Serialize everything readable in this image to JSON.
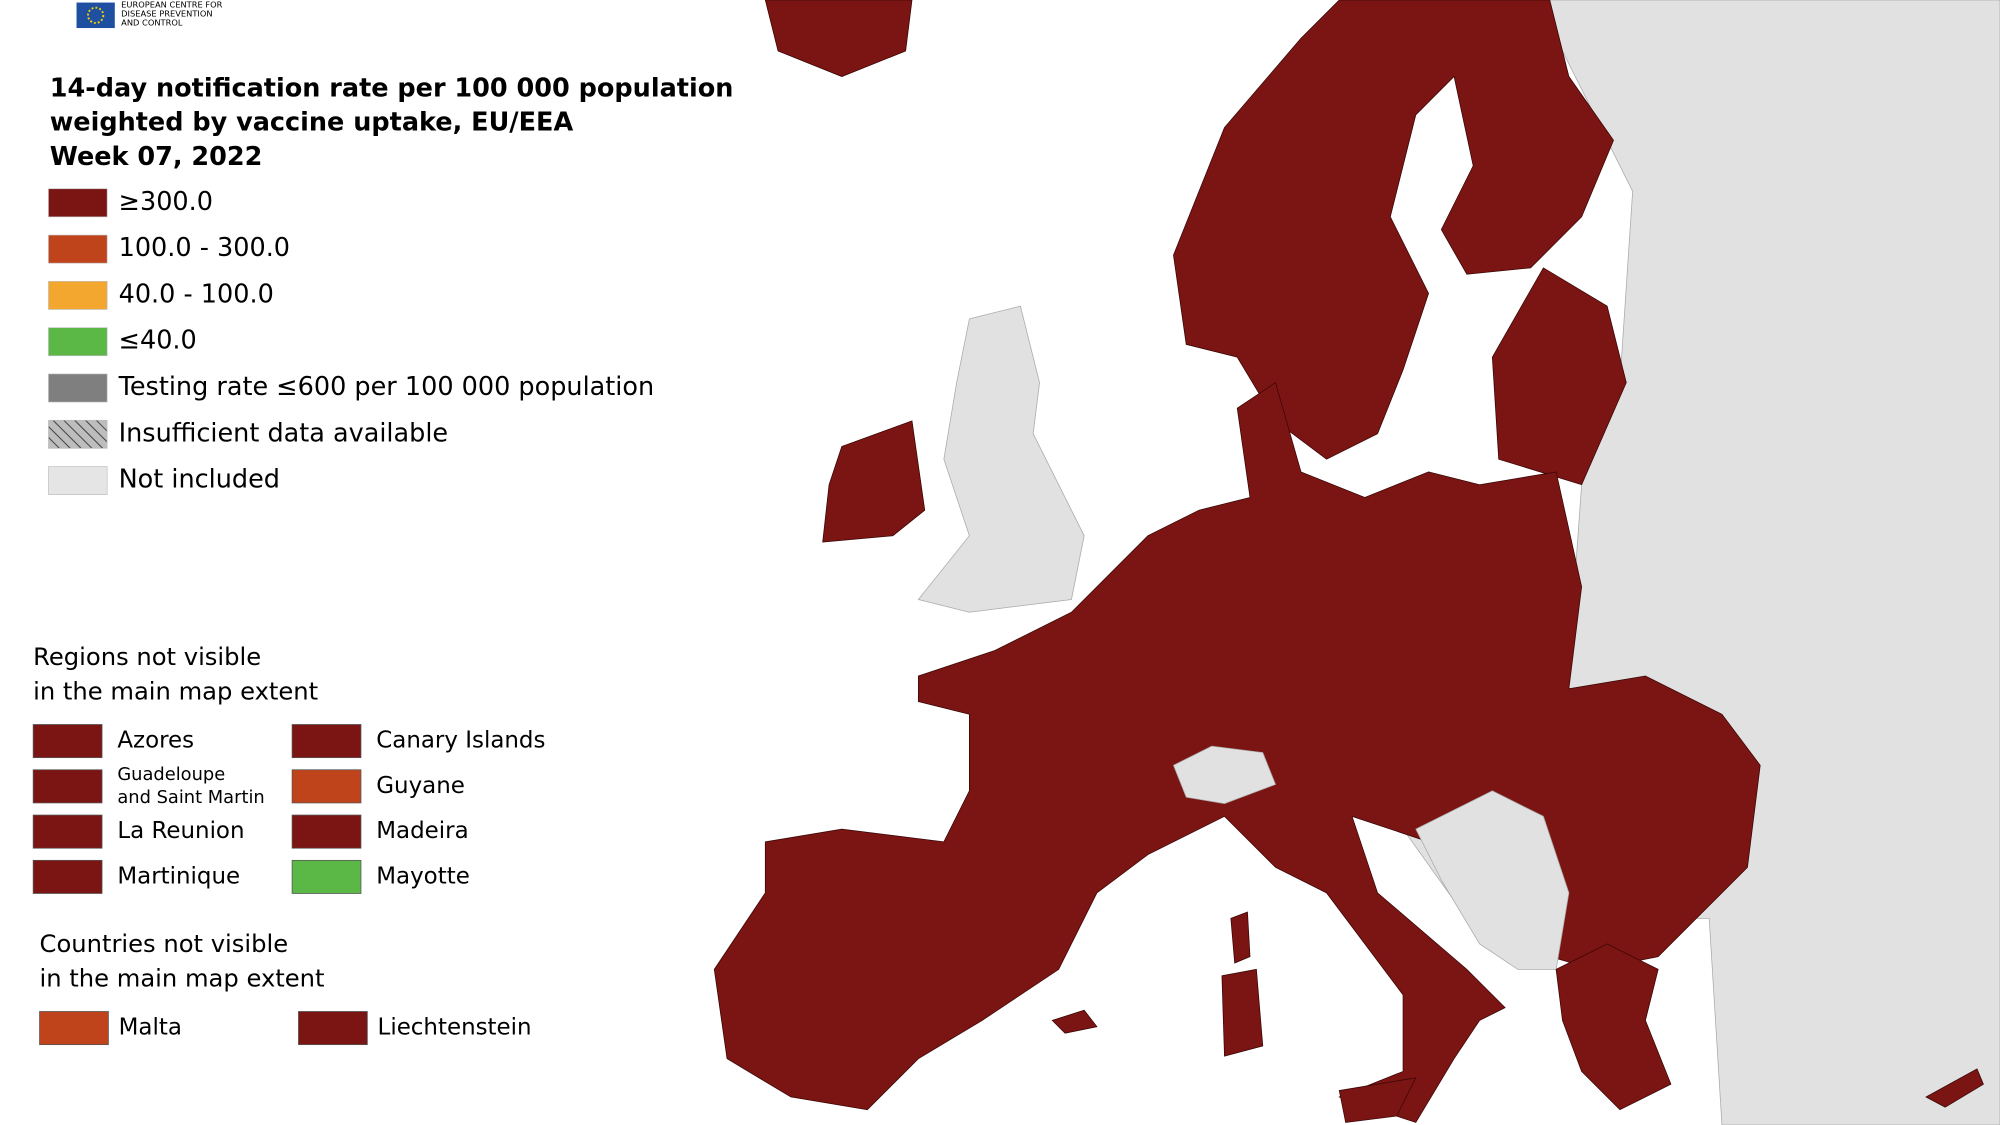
{
  "logo": {
    "lines": [
      "EUROPEAN CENTRE FOR",
      "DISEASE PREVENTION",
      "AND CONTROL"
    ]
  },
  "title": [
    "14-day notification rate per 100 000 population",
    "weighted by vaccine uptake, EU/EEA",
    "Week 07, 2022"
  ],
  "legend": [
    {
      "label": "≥300.0",
      "color": "#7b1513"
    },
    {
      "label": "100.0 - 300.0",
      "color": "#c0441b"
    },
    {
      "label": "40.0 - 100.0",
      "color": "#f3a72e"
    },
    {
      "label": "≤40.0",
      "color": "#5bb847"
    },
    {
      "label": "Testing rate ≤600 per 100 000 population",
      "color": "#7f7f7f"
    },
    {
      "label": "Insufficient data available",
      "color": "hatch"
    },
    {
      "label": "Not included",
      "color": "#e5e5e5"
    }
  ],
  "regions": {
    "heading": [
      "Regions not visible",
      "in the main map extent"
    ],
    "items": [
      {
        "label": "Azores",
        "color": "#7b1513"
      },
      {
        "label": [
          "Guadeloupe",
          "and Saint Martin"
        ],
        "color": "#7b1513"
      },
      {
        "label": "La Reunion",
        "color": "#7b1513"
      },
      {
        "label": "Martinique",
        "color": "#7b1513"
      },
      {
        "label": "Canary Islands",
        "color": "#7b1513"
      },
      {
        "label": "Guyane",
        "color": "#c0441b"
      },
      {
        "label": "Madeira",
        "color": "#7b1513"
      },
      {
        "label": "Mayotte",
        "color": "#5bb847"
      }
    ]
  },
  "countries": {
    "heading": [
      "Countries not visible",
      "in the main map extent"
    ],
    "items": [
      {
        "label": "Malta",
        "color": "#c0441b"
      },
      {
        "label": "Liechtenstein",
        "color": "#7b1513"
      }
    ]
  }
}
